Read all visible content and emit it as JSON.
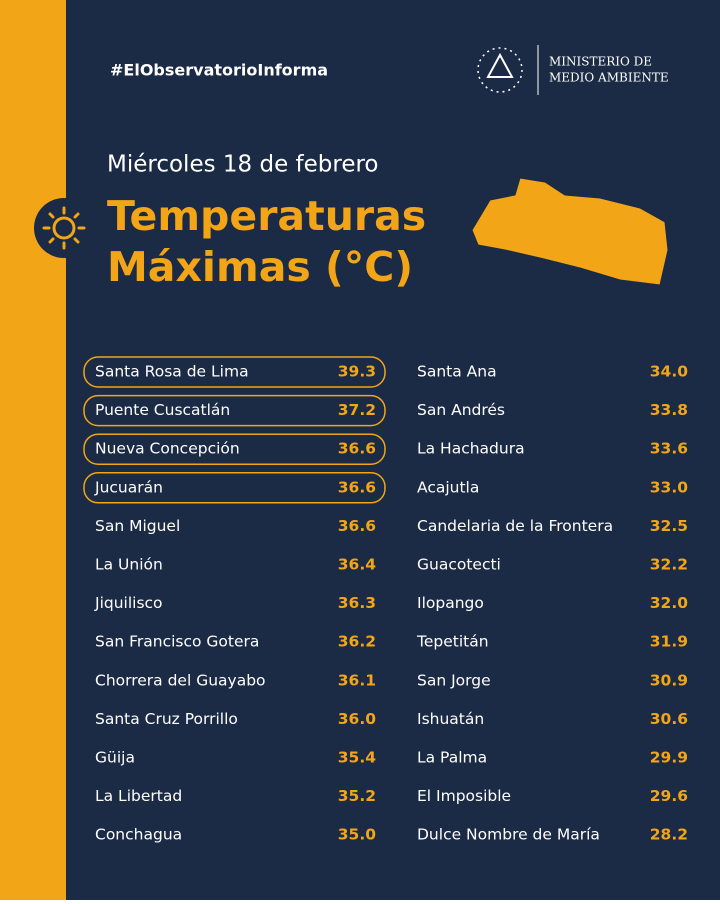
{
  "header": {
    "hashtag": "#ElObservatorioInforma",
    "ministry": [
      "MINISTERIO DE",
      "MEDIO AMBIENTE"
    ],
    "date": "Miércoles 18 de febrero",
    "title": [
      "Temperaturas",
      "Máximas (°C)"
    ]
  },
  "table": {
    "columns": [
      {
        "rows": [
          {
            "name": "Santa Rosa de Lima",
            "value": "39.3",
            "highlight": true
          },
          {
            "name": "Puente Cuscatlán",
            "value": "37.2",
            "highlight": true
          },
          {
            "name": "Nueva Concepción",
            "value": "36.6",
            "highlight": true
          },
          {
            "name": "Jucuarán",
            "value": "36.6",
            "highlight": true
          },
          {
            "name": "San Miguel",
            "value": "36.6"
          },
          {
            "name": "La Unión",
            "value": "36.4"
          },
          {
            "name": "Jiquilisco",
            "value": "36.3"
          },
          {
            "name": "San Francisco Gotera",
            "value": "36.2"
          },
          {
            "name": "Chorrera del Guayabo",
            "value": "36.1"
          },
          {
            "name": "Santa Cruz Porrillo",
            "value": "36.0"
          },
          {
            "name": "Güija",
            "value": "35.4"
          },
          {
            "name": "La Libertad",
            "value": "35.2"
          },
          {
            "name": "Conchagua",
            "value": "35.0"
          }
        ]
      },
      {
        "rows": [
          {
            "name": "Santa Ana",
            "value": "34.0"
          },
          {
            "name": "San Andrés",
            "value": "33.8"
          },
          {
            "name": "La Hachadura",
            "value": "33.6"
          },
          {
            "name": "Acajutla",
            "value": "33.0"
          },
          {
            "name": "Candelaria de la Frontera",
            "value": "32.5"
          },
          {
            "name": "Guacotecti",
            "value": "32.2"
          },
          {
            "name": "Ilopango",
            "value": "32.0"
          },
          {
            "name": "Tepetitán",
            "value": "31.9"
          },
          {
            "name": "San Jorge",
            "value": "30.9"
          },
          {
            "name": "Ishuatán",
            "value": "30.6"
          },
          {
            "name": "La Palma",
            "value": "29.9"
          },
          {
            "name": "El Imposible",
            "value": "29.6"
          },
          {
            "name": "Dulce Nombre de María",
            "value": "28.2"
          }
        ]
      }
    ]
  }
}
